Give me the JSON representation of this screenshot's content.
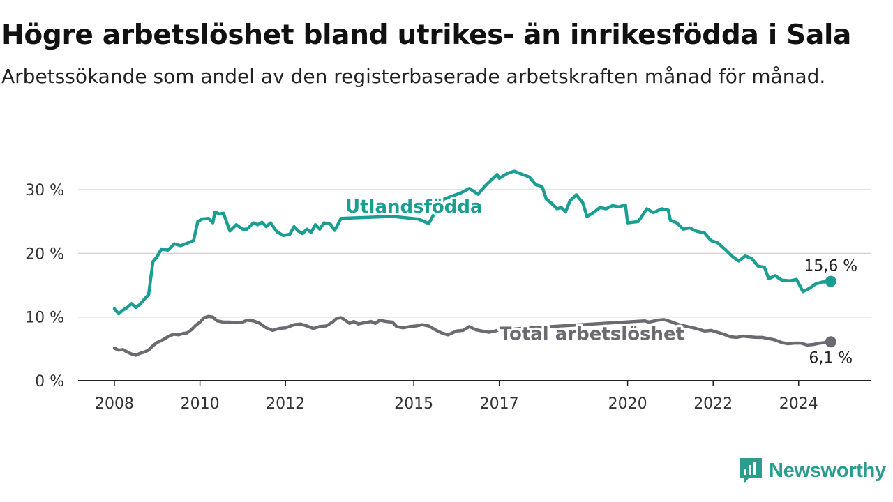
{
  "title": "Högre arbetslöshet bland utrikes- än inrikesfödda i Sala",
  "subtitle": "Arbetssökande som andel av den registerbaserade arbetskraften månad för månad.",
  "brand": {
    "name": "Newsworthy",
    "icon": "newsworthy-logo-icon",
    "color": "#2a9d8f"
  },
  "chart_data": {
    "type": "line",
    "title": "Högre arbetslöshet bland utrikes- än inrikesfödda i Sala",
    "xlabel": "",
    "ylabel": "",
    "xlim": [
      2007.7,
      2025.9
    ],
    "ylim": [
      0,
      33
    ],
    "y_ticks": [
      0,
      10,
      20,
      30
    ],
    "y_tick_labels": [
      "0 %",
      "10 %",
      "20 %",
      "30 %"
    ],
    "x_ticks": [
      2008,
      2010,
      2012,
      2015,
      2017,
      2020,
      2022,
      2024
    ],
    "x_tick_labels": [
      "2008",
      "2010",
      "2012",
      "2015",
      "2017",
      "2020",
      "2022",
      "2024"
    ],
    "grid": true,
    "series": [
      {
        "name": "Utlandsfödda",
        "color": "#1a9e92",
        "end_label": "15,6 %",
        "points": [
          [
            2008.0,
            11.3
          ],
          [
            2008.1,
            10.5
          ],
          [
            2008.2,
            11.1
          ],
          [
            2008.3,
            11.5
          ],
          [
            2008.4,
            12.1
          ],
          [
            2008.5,
            11.5
          ],
          [
            2008.6,
            12.0
          ],
          [
            2008.7,
            12.8
          ],
          [
            2008.8,
            13.5
          ],
          [
            2008.9,
            18.7
          ],
          [
            2009.0,
            19.5
          ],
          [
            2009.1,
            20.7
          ],
          [
            2009.25,
            20.5
          ],
          [
            2009.4,
            21.5
          ],
          [
            2009.55,
            21.2
          ],
          [
            2009.7,
            21.6
          ],
          [
            2009.85,
            22.0
          ],
          [
            2009.95,
            25.0
          ],
          [
            2010.05,
            25.4
          ],
          [
            2010.2,
            25.5
          ],
          [
            2010.3,
            24.8
          ],
          [
            2010.35,
            26.5
          ],
          [
            2010.45,
            26.2
          ],
          [
            2010.55,
            26.3
          ],
          [
            2010.7,
            23.5
          ],
          [
            2010.85,
            24.5
          ],
          [
            2011.0,
            23.8
          ],
          [
            2011.1,
            23.8
          ],
          [
            2011.25,
            24.8
          ],
          [
            2011.35,
            24.5
          ],
          [
            2011.45,
            24.9
          ],
          [
            2011.55,
            24.2
          ],
          [
            2011.65,
            24.8
          ],
          [
            2011.8,
            23.4
          ],
          [
            2011.95,
            22.8
          ],
          [
            2012.1,
            23.0
          ],
          [
            2012.2,
            24.2
          ],
          [
            2012.3,
            23.5
          ],
          [
            2012.4,
            23.1
          ],
          [
            2012.5,
            23.8
          ],
          [
            2012.6,
            23.3
          ],
          [
            2012.7,
            24.5
          ],
          [
            2012.8,
            23.8
          ],
          [
            2012.9,
            24.8
          ],
          [
            2013.05,
            24.6
          ],
          [
            2013.15,
            23.6
          ],
          [
            2013.3,
            25.5
          ],
          [
            2014.5,
            25.8
          ],
          [
            2015.1,
            25.4
          ],
          [
            2015.35,
            24.7
          ],
          [
            2015.5,
            26.5
          ],
          [
            2015.7,
            28.5
          ],
          [
            2015.9,
            29.0
          ],
          [
            2016.1,
            29.5
          ],
          [
            2016.3,
            30.2
          ],
          [
            2016.5,
            29.3
          ],
          [
            2016.7,
            30.8
          ],
          [
            2016.95,
            32.4
          ],
          [
            2017.0,
            31.8
          ],
          [
            2017.2,
            32.6
          ],
          [
            2017.35,
            32.9
          ],
          [
            2017.5,
            32.5
          ],
          [
            2017.7,
            32.0
          ],
          [
            2017.85,
            30.8
          ],
          [
            2018.0,
            30.5
          ],
          [
            2018.1,
            28.5
          ],
          [
            2018.2,
            28.0
          ],
          [
            2018.35,
            27.0
          ],
          [
            2018.45,
            27.2
          ],
          [
            2018.55,
            26.5
          ],
          [
            2018.65,
            28.2
          ],
          [
            2018.8,
            29.2
          ],
          [
            2018.95,
            28.0
          ],
          [
            2019.05,
            25.8
          ],
          [
            2019.2,
            26.4
          ],
          [
            2019.35,
            27.2
          ],
          [
            2019.5,
            27.0
          ],
          [
            2019.65,
            27.5
          ],
          [
            2019.8,
            27.3
          ],
          [
            2019.95,
            27.6
          ],
          [
            2020.0,
            24.8
          ],
          [
            2020.25,
            25.0
          ],
          [
            2020.45,
            27.0
          ],
          [
            2020.6,
            26.4
          ],
          [
            2020.8,
            27.0
          ],
          [
            2020.95,
            26.8
          ],
          [
            2021.0,
            25.2
          ],
          [
            2021.15,
            24.8
          ],
          [
            2021.3,
            23.8
          ],
          [
            2021.45,
            24.0
          ],
          [
            2021.6,
            23.5
          ],
          [
            2021.8,
            23.2
          ],
          [
            2021.95,
            22.0
          ],
          [
            2022.1,
            21.7
          ],
          [
            2022.3,
            20.5
          ],
          [
            2022.45,
            19.5
          ],
          [
            2022.6,
            18.8
          ],
          [
            2022.75,
            19.6
          ],
          [
            2022.9,
            19.2
          ],
          [
            2023.05,
            18.0
          ],
          [
            2023.2,
            17.8
          ],
          [
            2023.3,
            16.0
          ],
          [
            2023.45,
            16.5
          ],
          [
            2023.6,
            15.8
          ],
          [
            2023.8,
            15.7
          ],
          [
            2023.95,
            15.9
          ],
          [
            2024.1,
            14.0
          ],
          [
            2024.25,
            14.5
          ],
          [
            2024.4,
            15.2
          ],
          [
            2024.55,
            15.5
          ],
          [
            2024.75,
            15.6
          ]
        ]
      },
      {
        "name": "Total arbetslöshet",
        "color": "#6b6a70",
        "end_label": "6,1 %",
        "points": [
          [
            2008.0,
            5.1
          ],
          [
            2008.1,
            4.8
          ],
          [
            2008.2,
            4.9
          ],
          [
            2008.3,
            4.5
          ],
          [
            2008.4,
            4.2
          ],
          [
            2008.5,
            4.0
          ],
          [
            2008.6,
            4.3
          ],
          [
            2008.7,
            4.5
          ],
          [
            2008.8,
            4.8
          ],
          [
            2008.9,
            5.5
          ],
          [
            2009.0,
            6.0
          ],
          [
            2009.1,
            6.3
          ],
          [
            2009.2,
            6.7
          ],
          [
            2009.3,
            7.1
          ],
          [
            2009.4,
            7.3
          ],
          [
            2009.5,
            7.2
          ],
          [
            2009.6,
            7.4
          ],
          [
            2009.7,
            7.5
          ],
          [
            2009.8,
            8.0
          ],
          [
            2009.9,
            8.7
          ],
          [
            2010.0,
            9.2
          ],
          [
            2010.1,
            9.9
          ],
          [
            2010.2,
            10.1
          ],
          [
            2010.3,
            10.0
          ],
          [
            2010.4,
            9.4
          ],
          [
            2010.55,
            9.2
          ],
          [
            2010.7,
            9.2
          ],
          [
            2010.85,
            9.1
          ],
          [
            2011.0,
            9.2
          ],
          [
            2011.1,
            9.5
          ],
          [
            2011.25,
            9.4
          ],
          [
            2011.4,
            9.0
          ],
          [
            2011.55,
            8.3
          ],
          [
            2011.7,
            7.9
          ],
          [
            2011.85,
            8.2
          ],
          [
            2012.0,
            8.3
          ],
          [
            2012.2,
            8.8
          ],
          [
            2012.35,
            8.9
          ],
          [
            2012.5,
            8.6
          ],
          [
            2012.65,
            8.2
          ],
          [
            2012.8,
            8.5
          ],
          [
            2012.95,
            8.6
          ],
          [
            2013.1,
            9.2
          ],
          [
            2013.2,
            9.8
          ],
          [
            2013.3,
            9.9
          ],
          [
            2013.4,
            9.5
          ],
          [
            2013.5,
            9.0
          ],
          [
            2013.6,
            9.3
          ],
          [
            2013.7,
            8.9
          ],
          [
            2013.85,
            9.1
          ],
          [
            2014.0,
            9.3
          ],
          [
            2014.1,
            9.0
          ],
          [
            2014.2,
            9.5
          ],
          [
            2014.35,
            9.3
          ],
          [
            2014.5,
            9.2
          ],
          [
            2014.6,
            8.5
          ],
          [
            2014.75,
            8.3
          ],
          [
            2014.9,
            8.5
          ],
          [
            2015.05,
            8.6
          ],
          [
            2015.2,
            8.8
          ],
          [
            2015.35,
            8.6
          ],
          [
            2015.5,
            8.0
          ],
          [
            2015.65,
            7.5
          ],
          [
            2015.8,
            7.2
          ],
          [
            2015.9,
            7.5
          ],
          [
            2016.0,
            7.8
          ],
          [
            2016.15,
            7.9
          ],
          [
            2016.3,
            8.5
          ],
          [
            2016.45,
            8.0
          ],
          [
            2016.6,
            7.8
          ],
          [
            2016.75,
            7.6
          ],
          [
            2016.9,
            7.8
          ],
          [
            2017.0,
            8.0
          ],
          [
            2020.4,
            9.4
          ],
          [
            2020.5,
            9.2
          ],
          [
            2020.7,
            9.5
          ],
          [
            2020.85,
            9.6
          ],
          [
            2021.0,
            9.3
          ],
          [
            2021.2,
            8.8
          ],
          [
            2021.4,
            8.5
          ],
          [
            2021.6,
            8.2
          ],
          [
            2021.8,
            7.8
          ],
          [
            2021.95,
            7.9
          ],
          [
            2022.1,
            7.6
          ],
          [
            2022.25,
            7.3
          ],
          [
            2022.4,
            6.9
          ],
          [
            2022.55,
            6.8
          ],
          [
            2022.7,
            7.0
          ],
          [
            2022.85,
            6.9
          ],
          [
            2023.0,
            6.8
          ],
          [
            2023.15,
            6.8
          ],
          [
            2023.3,
            6.6
          ],
          [
            2023.45,
            6.4
          ],
          [
            2023.6,
            6.0
          ],
          [
            2023.75,
            5.8
          ],
          [
            2023.9,
            5.9
          ],
          [
            2024.05,
            5.9
          ],
          [
            2024.2,
            5.6
          ],
          [
            2024.35,
            5.7
          ],
          [
            2024.5,
            5.9
          ],
          [
            2024.75,
            6.1
          ]
        ]
      }
    ],
    "legend": "inline labels on lines"
  }
}
